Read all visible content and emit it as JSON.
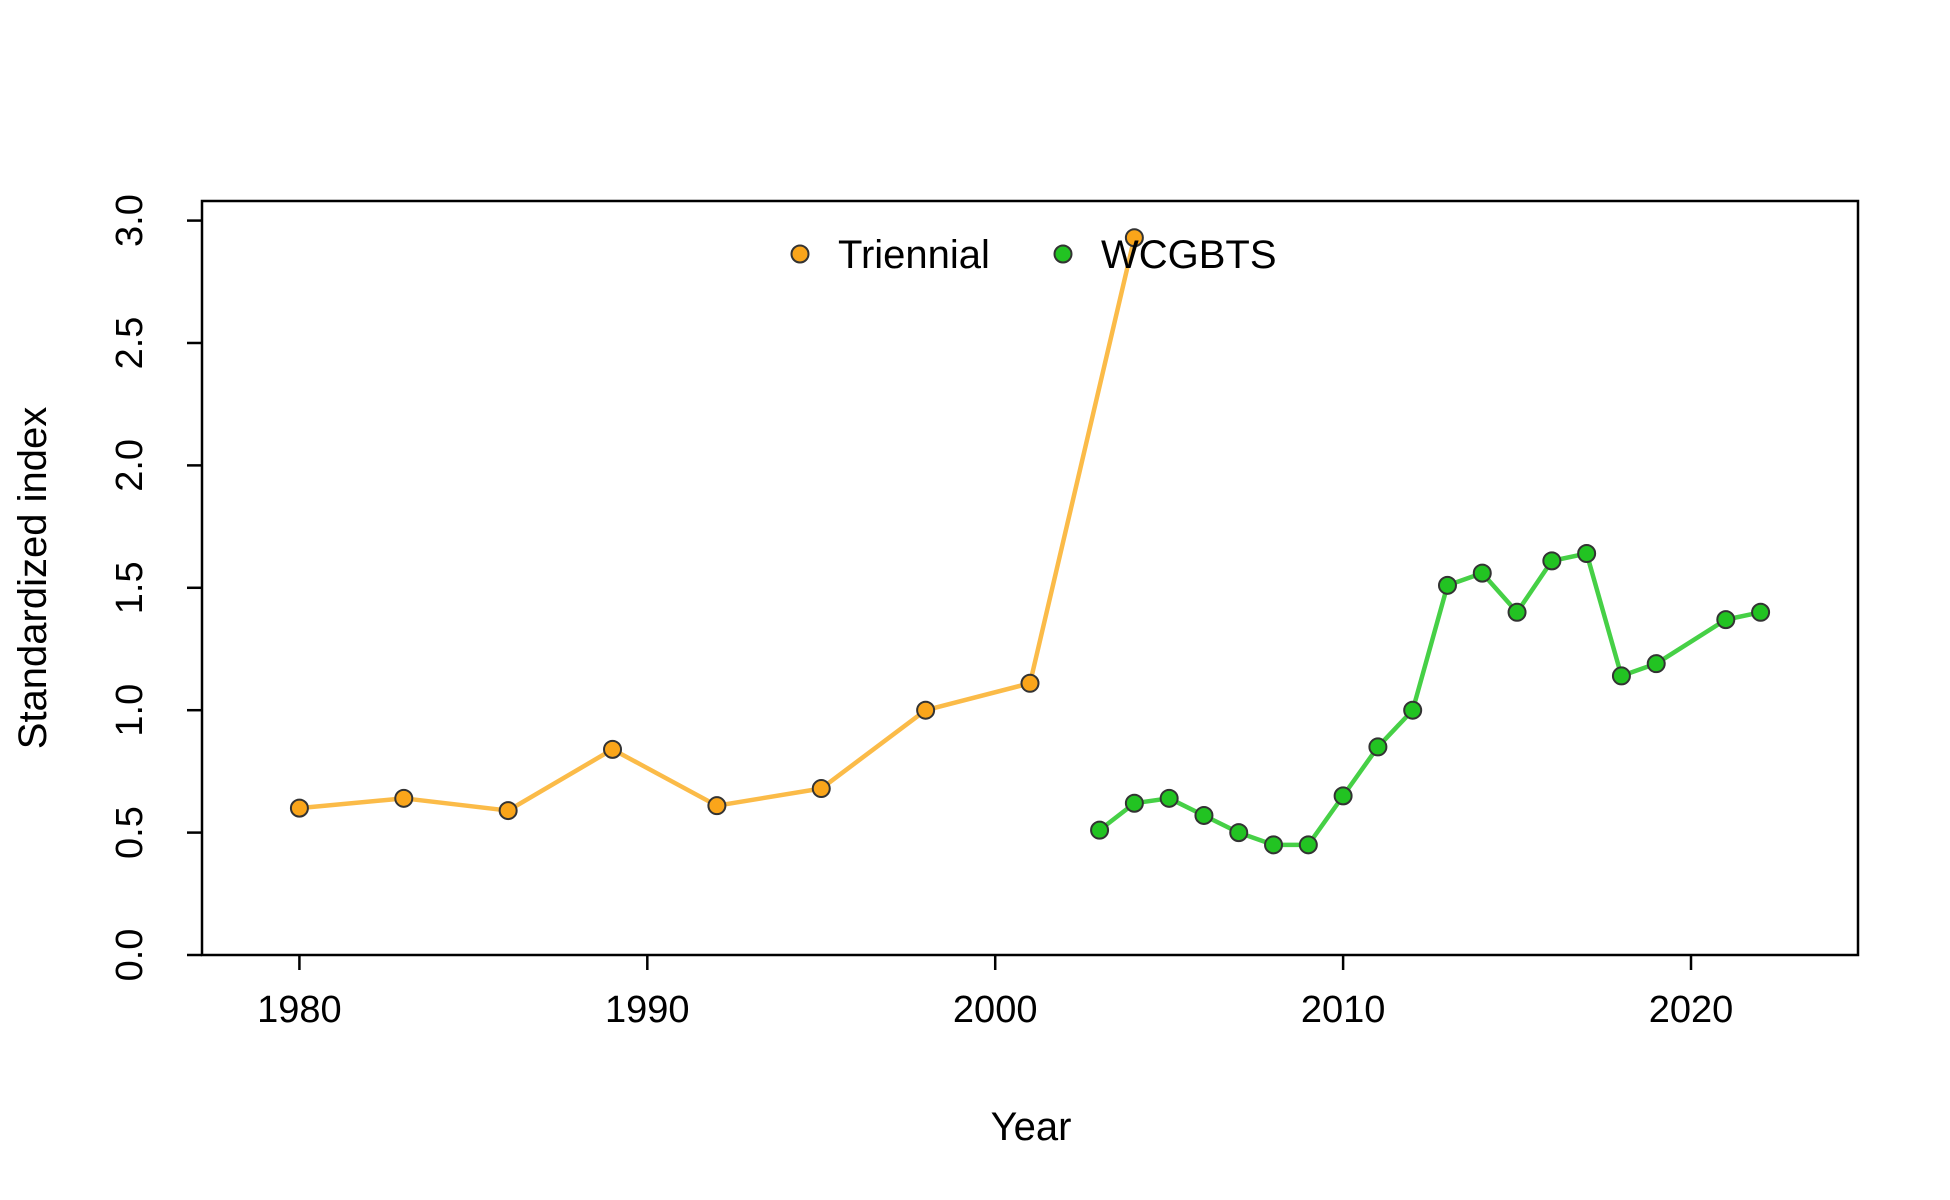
{
  "chart_data": {
    "type": "line",
    "title": "",
    "xlabel": "Year",
    "ylabel": "Standardized index",
    "xlim": [
      1977.2,
      2024.8
    ],
    "ylim": [
      0.0,
      3.08
    ],
    "x_ticks": [
      1980,
      1990,
      2000,
      2010,
      2020
    ],
    "y_ticks": [
      0.0,
      0.5,
      1.0,
      1.5,
      2.0,
      2.5,
      3.0
    ],
    "y_tick_labels": [
      "0.0",
      "0.5",
      "1.0",
      "1.5",
      "2.0",
      "2.5",
      "3.0"
    ],
    "grid": false,
    "legend_position": "top-center",
    "series": [
      {
        "name": "Triennial",
        "line_color": "#FBBB48",
        "point_color": "#FAA51A",
        "x": [
          1980,
          1983,
          1986,
          1989,
          1992,
          1995,
          1998,
          2001,
          2004
        ],
        "y": [
          0.6,
          0.64,
          0.59,
          0.84,
          0.61,
          0.68,
          1.0,
          1.11,
          2.93
        ]
      },
      {
        "name": "WCGBTS",
        "line_color": "#46D046",
        "point_color": "#22C322",
        "x": [
          2003,
          2004,
          2005,
          2006,
          2007,
          2008,
          2009,
          2010,
          2011,
          2012,
          2013,
          2014,
          2015,
          2016,
          2017,
          2018,
          2019,
          2021,
          2022
        ],
        "y": [
          0.51,
          0.62,
          0.64,
          0.57,
          0.5,
          0.45,
          0.45,
          0.65,
          0.85,
          1.0,
          1.51,
          1.56,
          1.4,
          1.61,
          1.64,
          1.14,
          1.19,
          1.37,
          1.4
        ]
      }
    ]
  }
}
